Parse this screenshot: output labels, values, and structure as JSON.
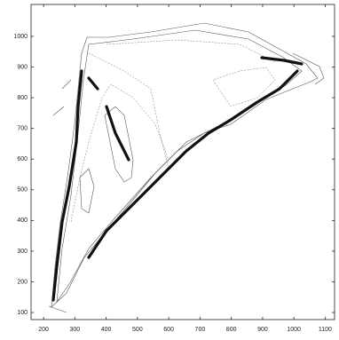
{
  "chart_data": {
    "type": "map",
    "xlim": [
      160,
      1130
    ],
    "xticks": [
      200,
      300,
      400,
      500,
      600,
      700,
      800,
      900,
      1000,
      1100
    ],
    "ylim": [
      77,
      1104
    ],
    "yticks": [
      100,
      200,
      300,
      400,
      500,
      600,
      700,
      800,
      900,
      1000
    ]
  }
}
